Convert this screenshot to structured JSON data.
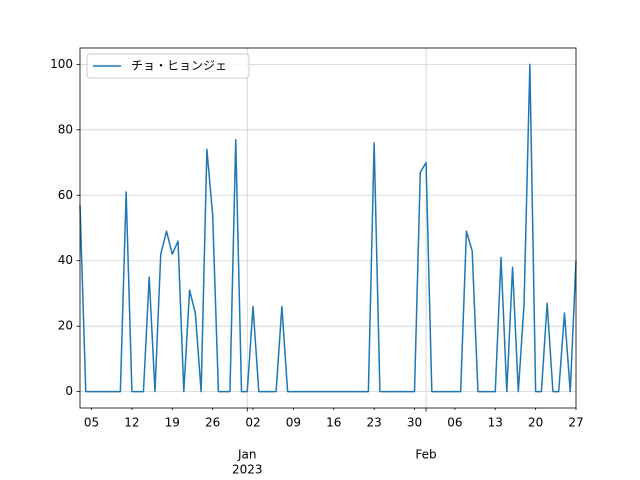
{
  "chart_data": {
    "type": "line",
    "x": [
      "2022-12-03",
      "2022-12-04",
      "2022-12-05",
      "2022-12-06",
      "2022-12-07",
      "2022-12-08",
      "2022-12-09",
      "2022-12-10",
      "2022-12-11",
      "2022-12-12",
      "2022-12-13",
      "2022-12-14",
      "2022-12-15",
      "2022-12-16",
      "2022-12-17",
      "2022-12-18",
      "2022-12-19",
      "2022-12-20",
      "2022-12-21",
      "2022-12-22",
      "2022-12-23",
      "2022-12-24",
      "2022-12-25",
      "2022-12-26",
      "2022-12-27",
      "2022-12-28",
      "2022-12-29",
      "2022-12-30",
      "2022-12-31",
      "2023-01-01",
      "2023-01-02",
      "2023-01-03",
      "2023-01-04",
      "2023-01-05",
      "2023-01-06",
      "2023-01-07",
      "2023-01-08",
      "2023-01-09",
      "2023-01-10",
      "2023-01-11",
      "2023-01-12",
      "2023-01-13",
      "2023-01-14",
      "2023-01-15",
      "2023-01-16",
      "2023-01-17",
      "2023-01-18",
      "2023-01-19",
      "2023-01-20",
      "2023-01-21",
      "2023-01-22",
      "2023-01-23",
      "2023-01-24",
      "2023-01-25",
      "2023-01-26",
      "2023-01-27",
      "2023-01-28",
      "2023-01-29",
      "2023-01-30",
      "2023-01-31",
      "2023-02-01",
      "2023-02-02",
      "2023-02-03",
      "2023-02-04",
      "2023-02-05",
      "2023-02-06",
      "2023-02-07",
      "2023-02-08",
      "2023-02-09",
      "2023-02-10",
      "2023-02-11",
      "2023-02-12",
      "2023-02-13",
      "2023-02-14",
      "2023-02-15",
      "2023-02-16",
      "2023-02-17",
      "2023-02-18",
      "2023-02-19",
      "2023-02-20",
      "2023-02-21",
      "2023-02-22",
      "2023-02-23",
      "2023-02-24",
      "2023-02-25",
      "2023-02-26",
      "2023-02-27"
    ],
    "series": [
      {
        "name": "チョ・ヒョンジェ",
        "color": "#1f77b4",
        "values": [
          57,
          0,
          0,
          0,
          0,
          0,
          0,
          0,
          61,
          0,
          0,
          0,
          35,
          0,
          42,
          49,
          42,
          46,
          0,
          31,
          24,
          0,
          74,
          54,
          0,
          0,
          0,
          77,
          0,
          0,
          26,
          0,
          0,
          0,
          0,
          26,
          0,
          0,
          0,
          0,
          0,
          0,
          0,
          0,
          0,
          0,
          0,
          0,
          0,
          0,
          0,
          76,
          0,
          0,
          0,
          0,
          0,
          0,
          0,
          67,
          70,
          0,
          0,
          0,
          0,
          0,
          0,
          49,
          43,
          0,
          0,
          0,
          0,
          41,
          0,
          38,
          0,
          27,
          100,
          0,
          0,
          27,
          0,
          0,
          24,
          0,
          40
        ]
      }
    ],
    "xlim": [
      "2022-12-03",
      "2023-02-27"
    ],
    "xticks": [
      {
        "value": "2022-12-05",
        "label": "05"
      },
      {
        "value": "2022-12-12",
        "label": "12"
      },
      {
        "value": "2022-12-19",
        "label": "19"
      },
      {
        "value": "2022-12-26",
        "label": "26"
      },
      {
        "value": "2023-01-02",
        "label": "02"
      },
      {
        "value": "2023-01-09",
        "label": "09"
      },
      {
        "value": "2023-01-16",
        "label": "16"
      },
      {
        "value": "2023-01-23",
        "label": "23"
      },
      {
        "value": "2023-01-30",
        "label": "30"
      },
      {
        "value": "2023-02-06",
        "label": "06"
      },
      {
        "value": "2023-02-13",
        "label": "13"
      },
      {
        "value": "2023-02-20",
        "label": "20"
      },
      {
        "value": "2023-02-27",
        "label": "27"
      }
    ],
    "major_xticks": [
      {
        "value": "2023-01-01",
        "label": "Jan",
        "label2": "2023"
      },
      {
        "value": "2023-02-01",
        "label": "Feb"
      }
    ],
    "ylim": [
      -5,
      105
    ],
    "yticks": [
      0,
      20,
      40,
      60,
      80,
      100
    ],
    "grid": true,
    "legend": "upper left"
  }
}
